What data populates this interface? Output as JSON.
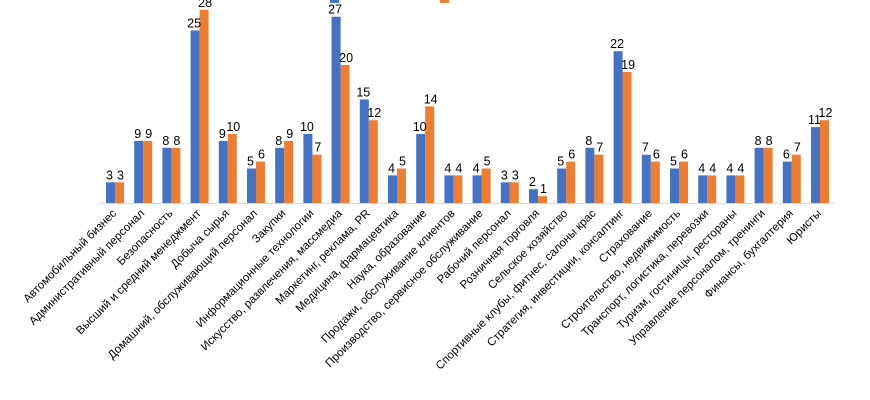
{
  "chart_data": {
    "type": "bar",
    "title": "",
    "xlabel": "",
    "ylabel": "",
    "ylim": [
      0,
      28
    ],
    "grid": false,
    "legend": "top (cropped, text not legible)",
    "colors": [
      "#4472C4",
      "#ED7D31"
    ],
    "categories": [
      "Автомобильный бизнес",
      "Административный персонал",
      "Безопасность",
      "Высший и средний менеджмент",
      "Добыча сырья",
      "Домашний, обслуживающий персонал",
      "Закупки",
      "Информационные технологии",
      "Искусство, развлечения, массмедиа",
      "Маркетинг, реклама, PR",
      "Медицина, фармацевтика",
      "Наука, образование",
      "Продажи, обслуживание клиентов",
      "Производство, сервисное обслуживание",
      "Рабочий персонал",
      "Розничная торговля",
      "Сельское хозяйство",
      "Спортивные клубы, фитнес, салоны крас",
      "Стратегия, инвестиции, консалтинг",
      "Страхование",
      "Строительство, недвижимость",
      "Транспорт, логистика, перевозки",
      "Туризм, гостиницы, рестораны",
      "Управление персоналом, тренинги",
      "Финансы, бухгалтерия",
      "Юристы"
    ],
    "series": [
      {
        "values": [
          3,
          9,
          8,
          25,
          9,
          5,
          8,
          10,
          27,
          15,
          4,
          10,
          4,
          4,
          3,
          2,
          5,
          8,
          22,
          7,
          5,
          4,
          4,
          8,
          6,
          11
        ]
      },
      {
        "values": [
          3,
          9,
          8,
          28,
          10,
          6,
          9,
          7,
          20,
          12,
          5,
          14,
          4,
          5,
          3,
          1,
          6,
          7,
          19,
          6,
          6,
          4,
          4,
          8,
          7,
          12
        ]
      }
    ]
  }
}
